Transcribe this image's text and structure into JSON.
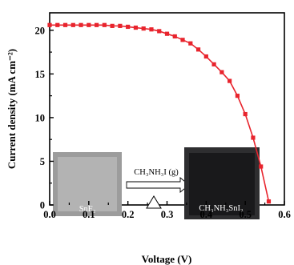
{
  "chart_data": {
    "type": "line",
    "xlabel": "Voltage (V)",
    "ylabel": "Current density (mA cm⁻²)",
    "xlim": [
      0.0,
      0.6
    ],
    "ylim": [
      0,
      22
    ],
    "xticks": [
      "0.0",
      "0.1",
      "0.2",
      "0.3",
      "0.4",
      "0.5",
      "0.6"
    ],
    "yticks": [
      "0",
      "5",
      "10",
      "15",
      "20"
    ],
    "series": [
      {
        "color": "#e8242d",
        "marker": "square",
        "x": [
          0.0,
          0.02,
          0.04,
          0.06,
          0.08,
          0.1,
          0.12,
          0.14,
          0.16,
          0.18,
          0.2,
          0.22,
          0.24,
          0.26,
          0.28,
          0.3,
          0.32,
          0.34,
          0.36,
          0.38,
          0.4,
          0.42,
          0.44,
          0.46,
          0.48,
          0.5,
          0.52,
          0.54,
          0.56
        ],
        "values": [
          20.6,
          20.6,
          20.6,
          20.6,
          20.6,
          20.6,
          20.6,
          20.6,
          20.5,
          20.5,
          20.4,
          20.3,
          20.2,
          20.1,
          19.9,
          19.6,
          19.3,
          18.9,
          18.5,
          17.8,
          17.0,
          16.1,
          15.2,
          14.2,
          12.5,
          10.4,
          7.7,
          4.4,
          0.4
        ]
      }
    ],
    "inset": {
      "left_film_label": "SnF₂",
      "arrow_label": "CH₃NH₃I (g)",
      "right_film_label": "CH₃NH₃SnI₃"
    }
  }
}
